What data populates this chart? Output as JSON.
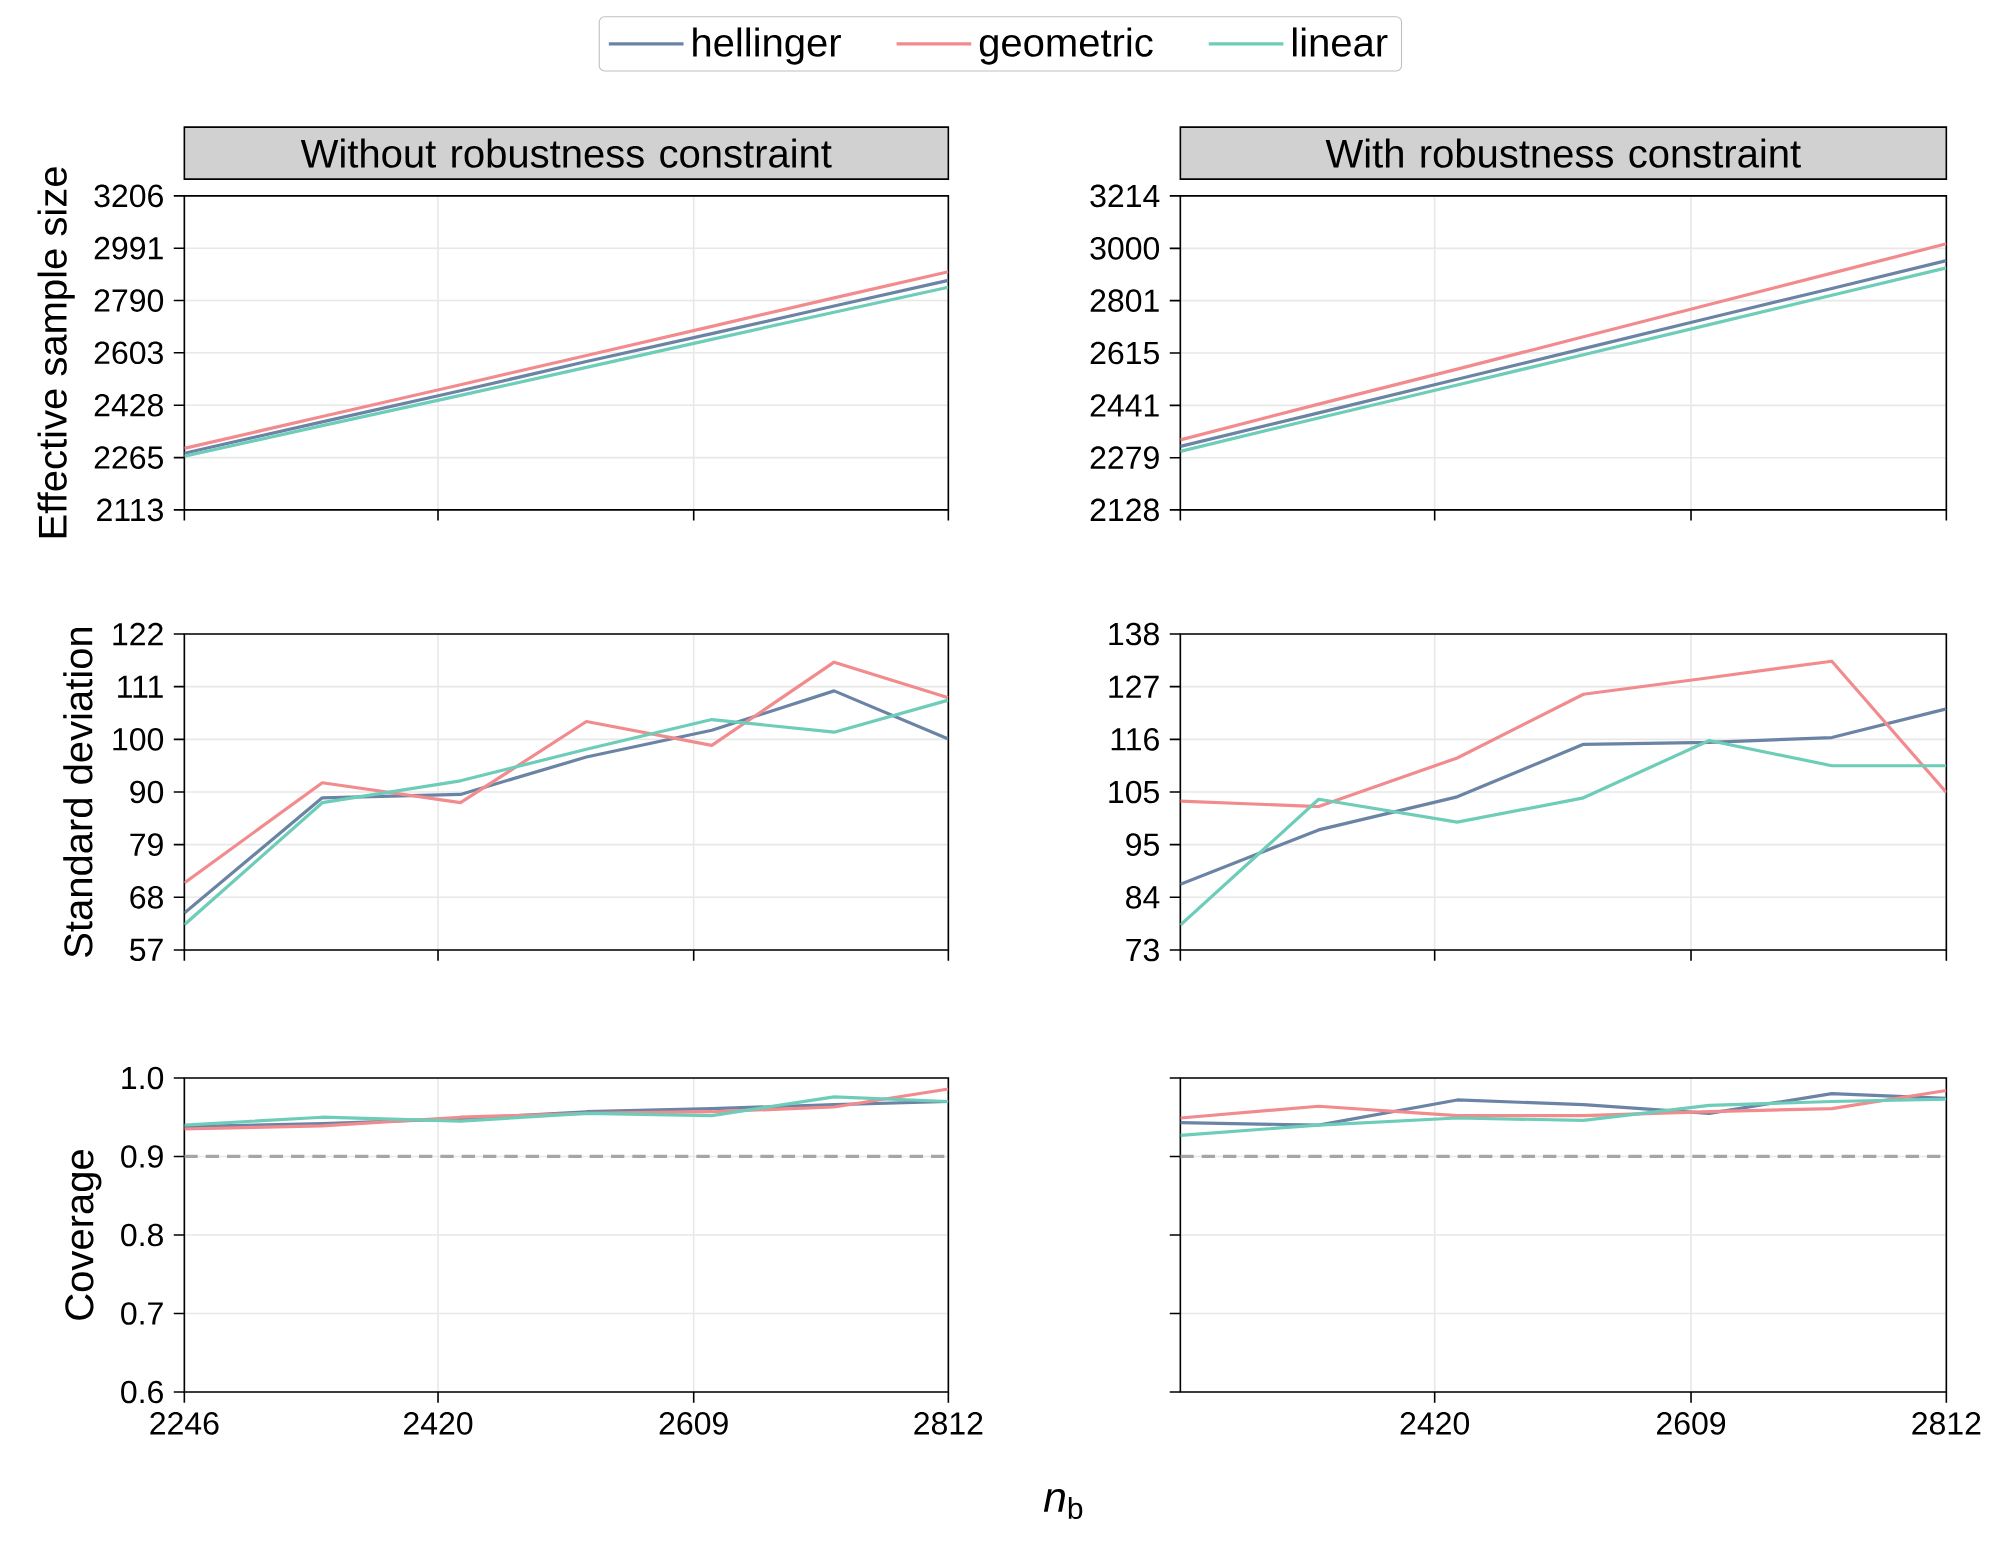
{
  "chart_data": [
    {
      "type": "line",
      "title": "Without robustness constraint",
      "ylabel": "Effective sample size",
      "log": "xy",
      "grid": true,
      "legend": "top",
      "tick_labels": "y",
      "x": [
        2246,
        2339,
        2436,
        2528,
        2623,
        2719,
        2812
      ],
      "xlim": [
        2246,
        2812
      ],
      "xticks": [
        2246,
        2420,
        2609,
        2812
      ],
      "ylim": [
        2113,
        3206
      ],
      "yticks": [
        2113,
        2265,
        2428,
        2603,
        2790,
        2991,
        3206
      ],
      "series": [
        {
          "name": "hellinger",
          "color": "#6b84a5",
          "values": [
            2278,
            2375,
            2475,
            2573,
            2670,
            2770,
            2866
          ]
        },
        {
          "name": "geometric",
          "color": "#f28b8e",
          "values": [
            2293,
            2392,
            2495,
            2594,
            2696,
            2800,
            2899
          ]
        },
        {
          "name": "linear",
          "color": "#6dcdb8",
          "values": [
            2269,
            2363,
            2460,
            2553,
            2650,
            2747,
            2840
          ]
        }
      ]
    },
    {
      "type": "line",
      "title": "With robustness constraint",
      "log": "xy",
      "grid": true,
      "tick_labels": "y",
      "x": [
        2246,
        2339,
        2436,
        2528,
        2623,
        2719,
        2812
      ],
      "xlim": [
        2246,
        2812
      ],
      "xticks": [
        2246,
        2420,
        2609,
        2812
      ],
      "ylim": [
        2128,
        3214
      ],
      "yticks": [
        2128,
        2279,
        2441,
        2615,
        2801,
        3000,
        3214
      ],
      "series": [
        {
          "color": "#6b84a5",
          "values": [
            2313,
            2417,
            2526,
            2630,
            2738,
            2846,
            2952
          ]
        },
        {
          "color": "#f28b8e",
          "values": [
            2333,
            2445,
            2560,
            2671,
            2787,
            2904,
            3018
          ]
        },
        {
          "color": "#6dcdb8",
          "values": [
            2298,
            2401,
            2507,
            2609,
            2714,
            2821,
            2924
          ]
        }
      ]
    },
    {
      "type": "line",
      "ylabel": "Standard deviation",
      "log": "x",
      "grid": true,
      "tick_labels": "y",
      "x": [
        2246,
        2339,
        2436,
        2528,
        2623,
        2719,
        2812
      ],
      "xlim": [
        2246,
        2812
      ],
      "xticks": [
        2246,
        2420,
        2609,
        2812
      ],
      "ylim": [
        57,
        122
      ],
      "yticks": [
        57,
        {
          "value": 67.83,
          "label": "68"
        },
        {
          "value": 78.67,
          "label": "79"
        },
        {
          "value": 89.5,
          "label": "90"
        },
        {
          "value": 100.33,
          "label": "100"
        },
        {
          "value": 111.17,
          "label": "111"
        },
        122
      ],
      "series": [
        {
          "color": "#6b84a5",
          "values": [
            64.6,
            88.3,
            89.0,
            96.7,
            102.2,
            110.3,
            100.4
          ]
        },
        {
          "color": "#f28b8e",
          "values": [
            70.8,
            91.4,
            87.3,
            104.0,
            99.1,
            116.2,
            108.9
          ]
        },
        {
          "color": "#6dcdb8",
          "values": [
            62.2,
            87.3,
            91.8,
            98.3,
            104.4,
            101.8,
            108.4
          ]
        }
      ]
    },
    {
      "type": "line",
      "log": "x",
      "grid": true,
      "tick_labels": "y",
      "x": [
        2246,
        2339,
        2436,
        2528,
        2623,
        2719,
        2812
      ],
      "xlim": [
        2246,
        2812
      ],
      "xticks": [
        2246,
        2420,
        2609,
        2812
      ],
      "ylim": [
        73,
        138
      ],
      "yticks": [
        73,
        {
          "value": 83.83,
          "label": "84"
        },
        {
          "value": 94.67,
          "label": "95"
        },
        {
          "value": 105.5,
          "label": "105"
        },
        {
          "value": 116.33,
          "label": "116"
        },
        {
          "value": 127.17,
          "label": "127"
        },
        138
      ],
      "series": [
        {
          "color": "#6b84a5",
          "values": [
            86.5,
            97.7,
            104.5,
            115.3,
            115.7,
            116.7,
            122.6
          ]
        },
        {
          "color": "#f28b8e",
          "values": [
            103.6,
            102.5,
            112.5,
            125.6,
            129.0,
            132.4,
            105.4
          ]
        },
        {
          "color": "#6dcdb8",
          "values": [
            78.1,
            104.0,
            99.3,
            104.3,
            116.1,
            110.9,
            110.9
          ]
        }
      ]
    },
    {
      "type": "line",
      "ylabel": "Coverage",
      "xlabel": "*n*$_{b}$",
      "log": "x",
      "grid": true,
      "x": [
        2246,
        2339,
        2436,
        2528,
        2623,
        2719,
        2812
      ],
      "xlim": [
        2246,
        2812
      ],
      "xticks": [
        2246,
        2420,
        2609,
        2812
      ],
      "ylim": [
        0.6,
        1.0
      ],
      "yticks": [
        0.6,
        0.7,
        0.8,
        0.9,
        {
          "value": 1.0,
          "label": "1.0"
        }
      ],
      "ref_lines": [
        {
          "axis": "y",
          "value": 0.9,
          "color": "#a6a6a6",
          "line_style": "dashed"
        }
      ],
      "series": [
        {
          "color": "#6b84a5",
          "values": [
            0.938,
            0.942,
            0.948,
            0.957,
            0.961,
            0.966,
            0.97
          ]
        },
        {
          "color": "#f28b8e",
          "values": [
            0.935,
            0.939,
            0.95,
            0.955,
            0.957,
            0.963,
            0.986
          ]
        },
        {
          "color": "#6dcdb8",
          "values": [
            0.94,
            0.95,
            0.945,
            0.955,
            0.952,
            0.976,
            0.97
          ]
        }
      ]
    },
    {
      "type": "line",
      "log": "x",
      "grid": true,
      "tick_labels": "x",
      "x": [
        2246,
        2339,
        2436,
        2528,
        2623,
        2719,
        2812
      ],
      "xlim": [
        2246,
        2812
      ],
      "xticks": [
        2420,
        2609,
        2812
      ],
      "ylim": [
        0.6,
        1.0
      ],
      "yticks": [
        0.6,
        0.7,
        0.8,
        0.9,
        1.0
      ],
      "ref_lines": [
        {
          "axis": "y",
          "value": 0.9,
          "color": "#a6a6a6",
          "line_style": "dashed"
        }
      ],
      "series": [
        {
          "color": "#6b84a5",
          "values": [
            0.943,
            0.94,
            0.972,
            0.966,
            0.955,
            0.98,
            0.974
          ]
        },
        {
          "color": "#f28b8e",
          "values": [
            0.949,
            0.964,
            0.952,
            0.952,
            0.957,
            0.961,
            0.984
          ]
        },
        {
          "color": "#6dcdb8",
          "values": [
            0.927,
            0.94,
            0.949,
            0.946,
            0.965,
            0.97,
            0.973
          ]
        }
      ]
    }
  ]
}
